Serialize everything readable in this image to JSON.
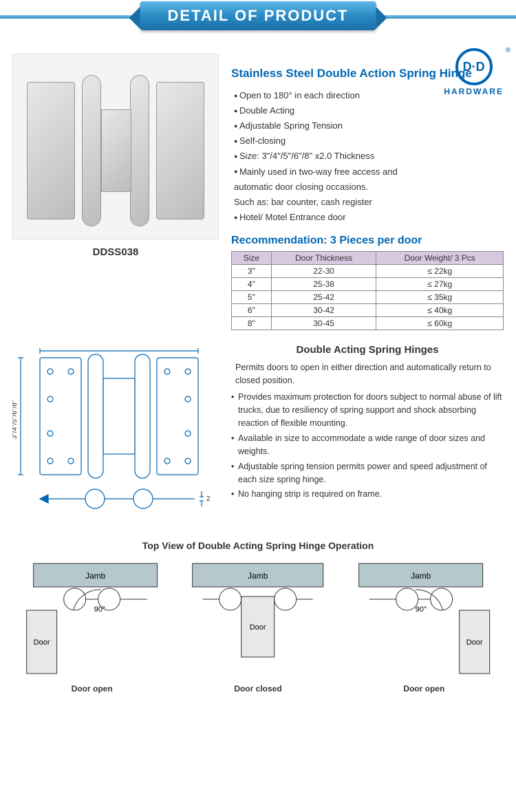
{
  "banner": {
    "title": "DETAIL OF PRODUCT"
  },
  "logo": {
    "mark": "D·D",
    "text": "HARDWARE",
    "reg": "®"
  },
  "product": {
    "code": "DDSS038",
    "title": "Stainless Steel Double Action Spring Hinge",
    "features": [
      "Open to 180° in each direction",
      "Double Acting",
      "Adjustable Spring Tension",
      "Self-closing",
      "Size: 3\"/4\"/5\"/6\"/8\" x2.0 Thickness",
      "Mainly used in two-way free access and",
      "automatic door closing occasions.",
      "Such as: bar counter, cash register",
      "Hotel/ Motel Entrance door"
    ],
    "feature_is_sub": [
      false,
      false,
      false,
      false,
      false,
      false,
      true,
      true,
      false
    ]
  },
  "recommendation": {
    "title": "Recommendation: 3 Pieces per door",
    "columns": [
      "Size",
      "Door Thickness",
      "Door Weight/ 3 Pcs"
    ],
    "rows": [
      [
        "3\"",
        "22-30",
        "≤ 22kg"
      ],
      [
        "4\"",
        "25-38",
        "≤ 27kg"
      ],
      [
        "5\"",
        "25-42",
        "≤ 35kg"
      ],
      [
        "6\"",
        "30-42",
        "≤ 40kg"
      ],
      [
        "8\"",
        "30-45",
        "≤ 60kg"
      ]
    ],
    "header_bg": "#d9c9e0",
    "border_color": "#888888"
  },
  "drawing": {
    "height_label": "3\"/4\"/5\"/6\"/8\"",
    "thickness_label": "2"
  },
  "description": {
    "title": "Double Acting Spring Hinges",
    "intro": "Permits doors to open in either direction and automatically return to closed position.",
    "points": [
      "Provides maximum protection for doors subject to normal abuse of lift trucks, due to resiliency of spring support and shock absorbing reaction of flexible mounting.",
      "Available in size to accommodate a wide range of door sizes and weights.",
      "Adjustable spring tension permits power and speed adjustment of each size spring hinge.",
      "No hanging strip is required on frame."
    ]
  },
  "operation": {
    "title": "Top View of Double Acting Spring Hinge Operation",
    "jamb": "Jamb",
    "door": "Door",
    "angle": "90°",
    "states": [
      "Door open",
      "Door closed",
      "Door open"
    ]
  },
  "colors": {
    "brand_blue": "#0066b3",
    "banner_grad_top": "#5cb8e6",
    "banner_grad_bot": "#1a6ea8",
    "jamb_fill": "#b5c9cd",
    "door_fill": "#e8e8e8",
    "line": "#333333"
  }
}
